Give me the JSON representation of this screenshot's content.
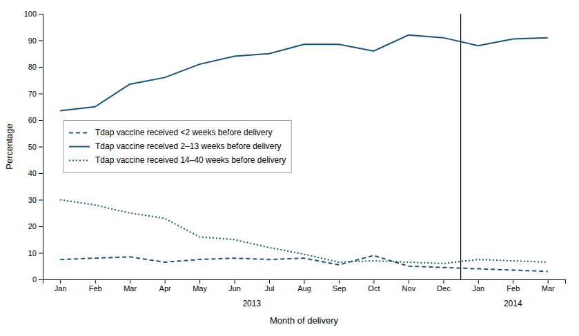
{
  "chart_data": {
    "type": "line",
    "categories": [
      "Jan",
      "Feb",
      "Mar",
      "Apr",
      "May",
      "Jun",
      "Jul",
      "Aug",
      "Sep",
      "Oct",
      "Nov",
      "Dec",
      "Jan",
      "Feb",
      "Mar"
    ],
    "series": [
      {
        "name": "Tdap vaccine received <2 weeks before delivery",
        "color": "#1a5276",
        "line_style": "dashed",
        "values": [
          7.5,
          8,
          8.5,
          6.5,
          7.5,
          8,
          7.5,
          8,
          5.5,
          9,
          5,
          4.5,
          4,
          3.5,
          3
        ]
      },
      {
        "name": "Tdap vaccine received 2–13 weeks before delivery",
        "color": "#1a5276",
        "line_style": "solid",
        "values": [
          63.5,
          65,
          73.5,
          76,
          81,
          84,
          85,
          88.5,
          88.5,
          86,
          92,
          91,
          88,
          90.5,
          91
        ]
      },
      {
        "name": "Tdap vaccine received 14–40 weeks before delivery",
        "color": "#1a5276",
        "line_style": "dotted",
        "values": [
          30,
          28,
          25,
          23,
          16,
          15,
          12,
          9.5,
          6.5,
          7,
          6.5,
          6,
          7.5,
          7,
          6.5
        ]
      }
    ],
    "xlabel": "Month of delivery",
    "ylabel": "Percentage",
    "annotations": [
      "2013",
      "2014"
    ],
    "ylim": [
      0,
      100
    ],
    "yticks": [
      0,
      10,
      20,
      30,
      40,
      50,
      60,
      70,
      80,
      90,
      100
    ],
    "grid": false,
    "legend": "center left"
  }
}
